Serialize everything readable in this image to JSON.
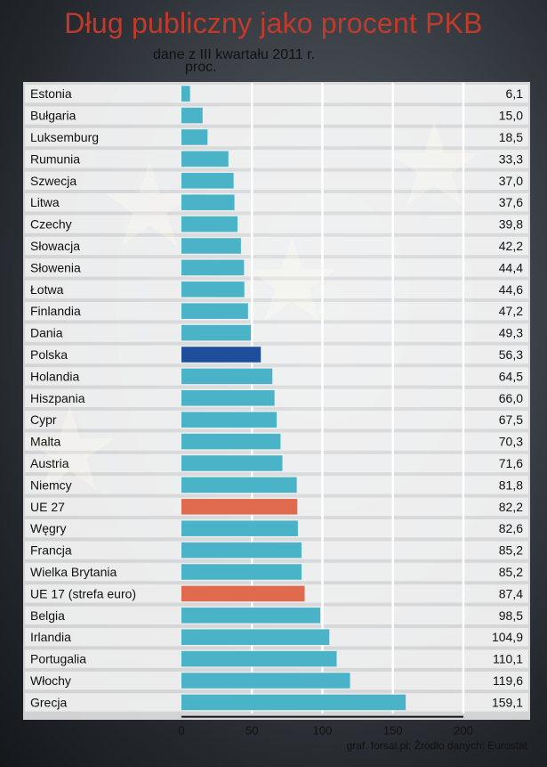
{
  "chart_data": {
    "type": "bar",
    "orientation": "horizontal",
    "title": "Dług publiczny jako procent PKB",
    "subtitle": "dane z III kwartału 2011 r.",
    "unit_label": "proc.",
    "source": "graf. forsal.pl; Źródło danych: Eurostat",
    "xlim": [
      0,
      200
    ],
    "xticks": [
      "0",
      "50",
      "100",
      "150",
      "200"
    ],
    "grid": true,
    "categories": [
      "Estonia",
      "Bułgaria",
      "Luksemburg",
      "Rumunia",
      "Szwecja",
      "Litwa",
      "Czechy",
      "Słowacja",
      "Słowenia",
      "Łotwa",
      "Finlandia",
      "Dania",
      "Polska",
      "Holandia",
      "Hiszpania",
      "Cypr",
      "Malta",
      "Austria",
      "Niemcy",
      "UE 27",
      "Węgry",
      "Francja",
      "Wielka Brytania",
      "UE 17 (strefa euro)",
      "Belgia",
      "Irlandia",
      "Portugalia",
      "Włochy",
      "Grecja"
    ],
    "values": [
      6.1,
      15.0,
      18.5,
      33.3,
      37.0,
      37.6,
      39.8,
      42.2,
      44.4,
      44.6,
      47.2,
      49.3,
      56.3,
      64.5,
      66.0,
      67.5,
      70.3,
      71.6,
      81.8,
      82.2,
      82.6,
      85.2,
      85.2,
      87.4,
      98.5,
      104.9,
      110.1,
      119.6,
      159.1
    ],
    "value_labels": [
      "6,1",
      "15,0",
      "18,5",
      "33,3",
      "37,0",
      "37,6",
      "39,8",
      "42,2",
      "44,4",
      "44,6",
      "47,2",
      "49,3",
      "56,3",
      "64,5",
      "66,0",
      "67,5",
      "70,3",
      "71,6",
      "81,8",
      "82,2",
      "82,6",
      "85,2",
      "85,2",
      "87,4",
      "98,5",
      "104,9",
      "110,1",
      "119,6",
      "159,1"
    ],
    "bar_colors": [
      "#4bb3c8",
      "#4bb3c8",
      "#4bb3c8",
      "#4bb3c8",
      "#4bb3c8",
      "#4bb3c8",
      "#4bb3c8",
      "#4bb3c8",
      "#4bb3c8",
      "#4bb3c8",
      "#4bb3c8",
      "#4bb3c8",
      "#1f4f9c",
      "#4bb3c8",
      "#4bb3c8",
      "#4bb3c8",
      "#4bb3c8",
      "#4bb3c8",
      "#4bb3c8",
      "#e06a4e",
      "#4bb3c8",
      "#4bb3c8",
      "#4bb3c8",
      "#e06a4e",
      "#4bb3c8",
      "#4bb3c8",
      "#4bb3c8",
      "#4bb3c8",
      "#4bb3c8"
    ]
  },
  "colors": {
    "default_bar": "#4bb3c8",
    "highlight_bar": "#1f4f9c",
    "aggregate_bar": "#e06a4e",
    "title": "#c23a2a"
  }
}
